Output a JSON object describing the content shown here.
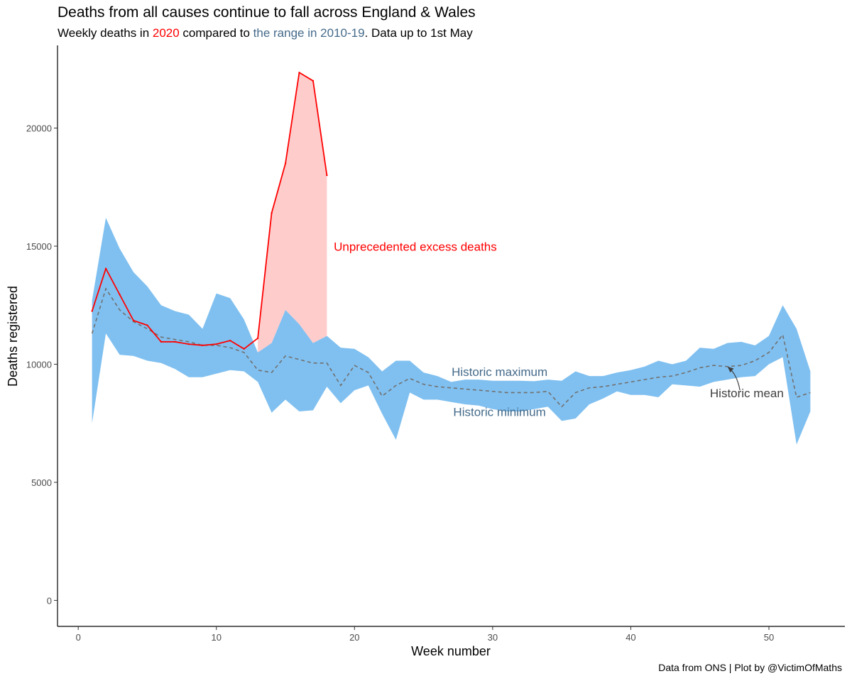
{
  "title": "Deaths from all causes continue to fall across England & Wales",
  "subtitle": {
    "part1": "Weekly deaths in ",
    "year": "2020",
    "part2": " compared to ",
    "range": "the range in 2010-19",
    "part3": ". Data up to 1st May"
  },
  "caption": "Data from ONS | Plot by @VictimOfMaths",
  "colors": {
    "deaths_2020": "#ff0000",
    "excess_fill": "#ffcccc",
    "historic_range": "#80c0f0",
    "historic_label": "#446a8a",
    "historic_mean": "#707070",
    "mean_label": "#404040"
  },
  "chart_data": {
    "type": "area",
    "xlabel": "Week number",
    "ylabel": "Deaths registered",
    "xlim": [
      -1.5,
      55.5
    ],
    "ylim": [
      -1100,
      23500
    ],
    "x_ticks": [
      0,
      10,
      20,
      30,
      40,
      50
    ],
    "y_ticks": [
      0,
      5000,
      10000,
      15000,
      20000
    ],
    "grid": false,
    "weeks": [
      1,
      2,
      3,
      4,
      5,
      6,
      7,
      8,
      9,
      10,
      11,
      12,
      13,
      14,
      15,
      16,
      17,
      18,
      19,
      20,
      21,
      22,
      23,
      24,
      25,
      26,
      27,
      28,
      29,
      30,
      31,
      32,
      33,
      34,
      35,
      36,
      37,
      38,
      39,
      40,
      41,
      42,
      43,
      44,
      45,
      46,
      47,
      48,
      49,
      50,
      51,
      52,
      53
    ],
    "historic_max": [
      12700,
      16200,
      14900,
      13900,
      13300,
      12500,
      12250,
      12100,
      11500,
      13000,
      12800,
      11900,
      10500,
      10900,
      12300,
      11700,
      10900,
      11200,
      10700,
      10650,
      10300,
      9700,
      10150,
      10150,
      9650,
      9500,
      9250,
      9350,
      9350,
      9300,
      9300,
      9300,
      9280,
      9350,
      9300,
      9700,
      9500,
      9500,
      9650,
      9750,
      9900,
      10150,
      10000,
      10150,
      10700,
      10650,
      10900,
      10950,
      10800,
      11200,
      12500,
      11500,
      9700
    ],
    "historic_min": [
      7500,
      11300,
      10400,
      10350,
      10150,
      10050,
      9800,
      9450,
      9450,
      9600,
      9750,
      9700,
      9250,
      7950,
      8500,
      8000,
      8050,
      9050,
      8350,
      8900,
      9100,
      7900,
      6800,
      8800,
      8500,
      8500,
      8400,
      8300,
      8250,
      8100,
      8000,
      8000,
      8100,
      8200,
      7600,
      7700,
      8300,
      8550,
      8850,
      8700,
      8700,
      8600,
      9150,
      9100,
      9050,
      9250,
      9350,
      9450,
      9500,
      10000,
      10300,
      6600,
      8000
    ],
    "historic_mean": [
      11300,
      13200,
      12300,
      11800,
      11500,
      11150,
      11050,
      10950,
      10800,
      10800,
      10700,
      10500,
      9750,
      9650,
      10350,
      10200,
      10050,
      10050,
      9100,
      9950,
      9650,
      8650,
      9100,
      9400,
      9150,
      9050,
      9000,
      8950,
      8900,
      8850,
      8800,
      8800,
      8800,
      8850,
      8200,
      8800,
      9000,
      9050,
      9150,
      9250,
      9350,
      9450,
      9500,
      9650,
      9850,
      9950,
      9900,
      9950,
      10150,
      10500,
      11250,
      8600,
      8800
    ],
    "series": [
      {
        "name": "2020",
        "x": [
          1,
          2,
          3,
          4,
          5,
          6,
          7,
          8,
          9,
          10,
          11,
          12,
          13,
          14,
          15,
          16,
          17,
          18
        ],
        "values": [
          12250,
          14050,
          12950,
          11850,
          11650,
          10950,
          10950,
          10850,
          10800,
          10850,
          11000,
          10650,
          11100,
          16400,
          18500,
          22350,
          22000,
          18000
        ]
      }
    ],
    "annotations": {
      "excess": "Unprecedented excess deaths",
      "historic_max": "Historic maximum",
      "historic_min": "Historic minimum",
      "historic_mean": "Historic mean"
    }
  }
}
